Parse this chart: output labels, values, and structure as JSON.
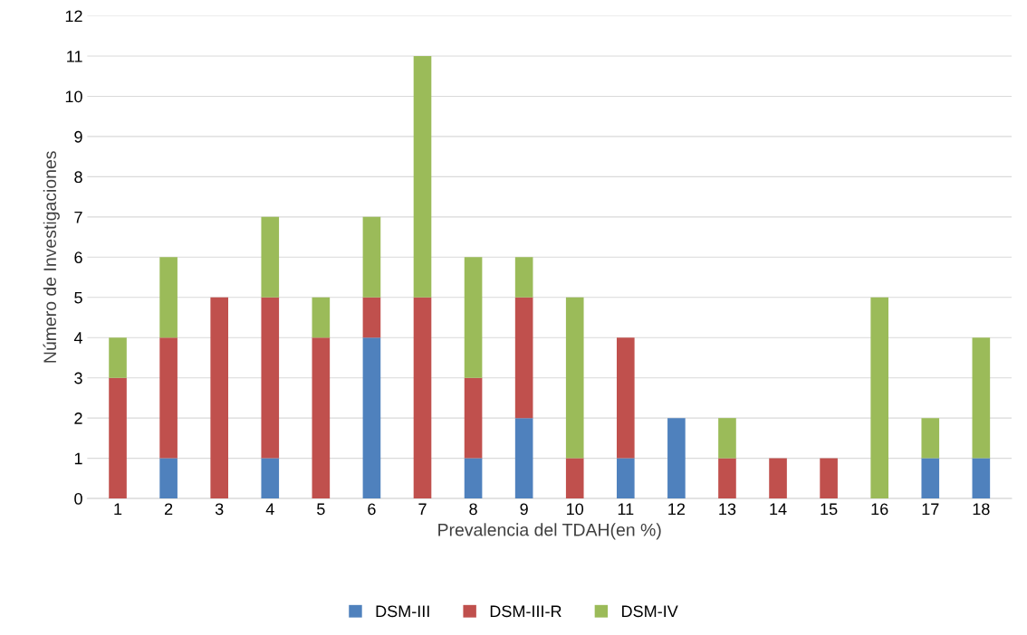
{
  "chart_data": {
    "type": "bar",
    "stacked": true,
    "xlabel": "Prevalencia del TDAH(en %)",
    "ylabel": "Número de Investigaciones",
    "categories": [
      "1",
      "2",
      "3",
      "4",
      "5",
      "6",
      "7",
      "8",
      "9",
      "10",
      "11",
      "12",
      "13",
      "14",
      "15",
      "16",
      "17",
      "18"
    ],
    "series": [
      {
        "name": "DSM-III",
        "color": "#4f81bd",
        "values": [
          0,
          1,
          0,
          1,
          0,
          4,
          0,
          1,
          2,
          0,
          1,
          2,
          0,
          0,
          0,
          0,
          1,
          1
        ]
      },
      {
        "name": "DSM-III-R",
        "color": "#c0504d",
        "values": [
          3,
          3,
          5,
          4,
          4,
          1,
          5,
          2,
          3,
          1,
          3,
          0,
          1,
          1,
          1,
          0,
          0,
          0
        ]
      },
      {
        "name": "DSM-IV",
        "color": "#9bbb59",
        "values": [
          1,
          2,
          0,
          2,
          1,
          2,
          6,
          3,
          1,
          4,
          0,
          0,
          1,
          0,
          0,
          5,
          1,
          3
        ]
      }
    ],
    "ylim": [
      0,
      12
    ],
    "yticks": [
      0,
      1,
      2,
      3,
      4,
      5,
      6,
      7,
      8,
      9,
      10,
      11,
      12
    ],
    "grid": "y",
    "legend": "bottom"
  }
}
